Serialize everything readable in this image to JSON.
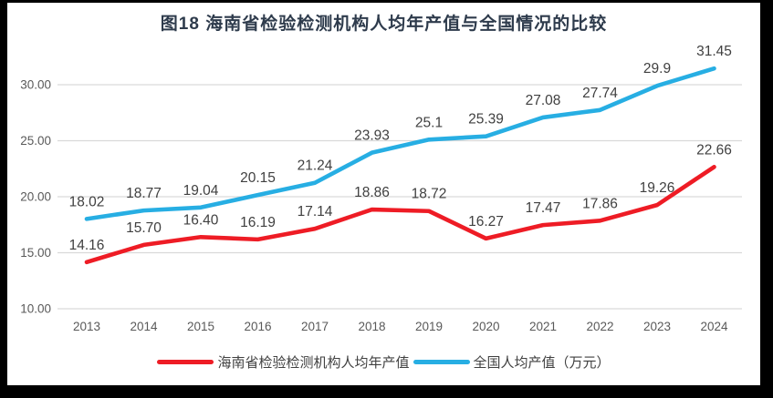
{
  "frame": {
    "background_color": "#000000",
    "panel_color": "#ffffff"
  },
  "chart_data": {
    "type": "line",
    "title": "图18  海南省检验检测机构人均年产值与全国情况的比较",
    "categories": [
      "2013",
      "2014",
      "2015",
      "2016",
      "2017",
      "2018",
      "2019",
      "2020",
      "2021",
      "2022",
      "2023",
      "2024"
    ],
    "series": [
      {
        "name": "海南省检验检测机构人均年产值",
        "color": "#ee1c25",
        "values": [
          14.16,
          15.7,
          16.4,
          16.19,
          17.14,
          18.86,
          18.72,
          16.27,
          17.47,
          17.86,
          19.26,
          22.66
        ],
        "labels": [
          "14.16",
          "15.70",
          "16.40",
          "16.19",
          "17.14",
          "18.86",
          "18.72",
          "16.27",
          "17.47",
          "17.86",
          "19.26",
          "22.66"
        ]
      },
      {
        "name": "全国人均产值（万元）",
        "color": "#27aee3",
        "values": [
          18.02,
          18.77,
          19.04,
          20.15,
          21.24,
          23.93,
          25.1,
          25.39,
          27.08,
          27.74,
          29.9,
          31.45
        ],
        "labels": [
          "18.02",
          "18.77",
          "19.04",
          "20.15",
          "21.24",
          "23.93",
          "25.1",
          "25.39",
          "27.08",
          "27.74",
          "29.9",
          "31.45"
        ]
      }
    ],
    "y_ticks": [
      {
        "value": 10,
        "label": "10.00"
      },
      {
        "value": 15,
        "label": "15.00"
      },
      {
        "value": 20,
        "label": "20.00"
      },
      {
        "value": 25,
        "label": "25.00"
      },
      {
        "value": 30,
        "label": "30.00"
      }
    ],
    "ylim": [
      10,
      32.5
    ],
    "grid": true,
    "legend_position": "bottom",
    "colors": {
      "gridline": "#d9d9d9",
      "tick_text": "#595959",
      "axis_text": "#595959",
      "data_label_text": "#404040",
      "title_text": "#2e3b4c",
      "legend_text": "#404040"
    }
  }
}
